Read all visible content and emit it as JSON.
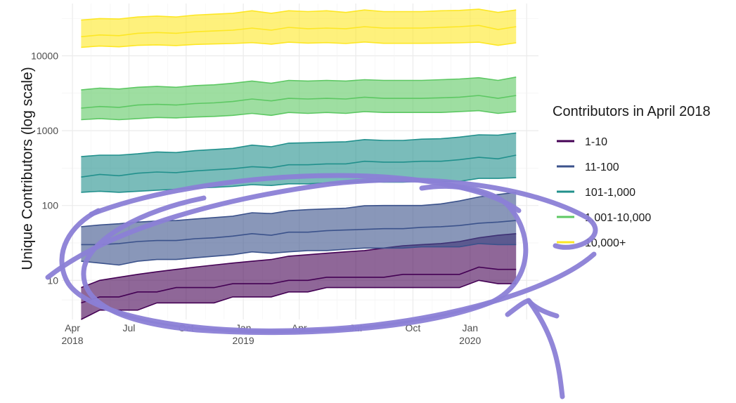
{
  "chart_data": {
    "type": "area",
    "ylabel": "Unique Contributors (log scale)",
    "y_scale": "log",
    "ylim": [
      3,
      50000
    ],
    "y_ticks": [
      {
        "value": 10,
        "label": "10"
      },
      {
        "value": 100,
        "label": "100"
      },
      {
        "value": 1000,
        "label": "1000"
      },
      {
        "value": 10000,
        "label": "10000"
      }
    ],
    "x_range": [
      "2018-03-15",
      "2020-04-20"
    ],
    "x_ticks": [
      {
        "date": "2018-04-01",
        "line1": "Apr",
        "line2": "2018"
      },
      {
        "date": "2018-07-01",
        "line1": "Jul",
        "line2": ""
      },
      {
        "date": "2018-10-01",
        "line1": "Oct",
        "line2": ""
      },
      {
        "date": "2019-01-01",
        "line1": "Jan",
        "line2": "2019"
      },
      {
        "date": "2019-04-01",
        "line1": "Apr",
        "line2": ""
      },
      {
        "date": "2019-07-01",
        "line1": "Jul",
        "line2": ""
      },
      {
        "date": "2019-10-01",
        "line1": "Oct",
        "line2": ""
      },
      {
        "date": "2020-01-01",
        "line1": "Jan",
        "line2": "2020"
      }
    ],
    "grid": true,
    "legend": {
      "title": "Contributors in April 2018",
      "position": "right"
    },
    "x": [
      "2018-04",
      "2018-05",
      "2018-06",
      "2018-07",
      "2018-08",
      "2018-09",
      "2018-10",
      "2018-11",
      "2018-12",
      "2019-01",
      "2019-02",
      "2019-03",
      "2019-04",
      "2019-05",
      "2019-06",
      "2019-07",
      "2019-08",
      "2019-09",
      "2019-10",
      "2019-11",
      "2019-12",
      "2020-01",
      "2020-02",
      "2020-03"
    ],
    "series": [
      {
        "name": "1-10",
        "color": "#440154",
        "lower": [
          3,
          4,
          4,
          4,
          5,
          5,
          5,
          5,
          6,
          6,
          6,
          7,
          7,
          8,
          8,
          8,
          8,
          8,
          8,
          8,
          8,
          10,
          9,
          9
        ],
        "median": [
          5,
          6,
          6,
          7,
          7,
          8,
          8,
          8,
          9,
          9,
          9,
          10,
          10,
          11,
          11,
          11,
          11,
          12,
          12,
          12,
          12,
          15,
          14,
          14
        ],
        "upper": [
          8,
          10,
          11,
          12,
          13,
          14,
          15,
          16,
          17,
          18,
          19,
          21,
          22,
          23,
          24,
          25,
          27,
          29,
          30,
          31,
          33,
          37,
          40,
          42
        ]
      },
      {
        "name": "11-100",
        "color": "#3b528b",
        "lower": [
          18,
          17,
          16,
          18,
          19,
          19,
          20,
          21,
          22,
          24,
          23,
          24,
          25,
          25,
          26,
          27,
          27,
          27,
          28,
          28,
          28,
          31,
          30,
          30
        ],
        "median": [
          30,
          30,
          31,
          33,
          34,
          34,
          36,
          37,
          39,
          42,
          40,
          44,
          44,
          46,
          47,
          48,
          49,
          49,
          51,
          52,
          54,
          58,
          60,
          63
        ],
        "upper": [
          52,
          55,
          57,
          60,
          62,
          63,
          66,
          69,
          72,
          80,
          78,
          85,
          88,
          90,
          92,
          99,
          100,
          100,
          100,
          105,
          115,
          130,
          140,
          150
        ]
      },
      {
        "name": "101-1,000",
        "color": "#21908c",
        "lower": [
          150,
          155,
          150,
          155,
          160,
          165,
          170,
          175,
          180,
          190,
          185,
          195,
          195,
          200,
          200,
          210,
          205,
          205,
          210,
          210,
          210,
          230,
          230,
          235
        ],
        "median": [
          240,
          260,
          250,
          270,
          280,
          275,
          290,
          300,
          310,
          330,
          320,
          350,
          350,
          360,
          360,
          390,
          380,
          380,
          390,
          390,
          410,
          440,
          420,
          470
        ],
        "upper": [
          450,
          470,
          470,
          490,
          520,
          510,
          540,
          560,
          580,
          640,
          610,
          680,
          690,
          700,
          710,
          760,
          740,
          740,
          770,
          780,
          820,
          880,
          870,
          930
        ]
      },
      {
        "name": "1,001-10,000",
        "color": "#5dc863",
        "lower": [
          1400,
          1450,
          1400,
          1450,
          1500,
          1480,
          1520,
          1550,
          1600,
          1700,
          1600,
          1750,
          1700,
          1750,
          1700,
          1800,
          1750,
          1750,
          1750,
          1750,
          1800,
          1850,
          1700,
          1800
        ],
        "median": [
          2000,
          2100,
          2050,
          2200,
          2250,
          2200,
          2300,
          2350,
          2450,
          2650,
          2500,
          2700,
          2650,
          2700,
          2650,
          2800,
          2700,
          2700,
          2700,
          2750,
          2800,
          2950,
          2700,
          2950
        ],
        "upper": [
          3500,
          3700,
          3600,
          3800,
          3900,
          3800,
          4000,
          4100,
          4300,
          4600,
          4300,
          4700,
          4600,
          4700,
          4600,
          4800,
          4700,
          4700,
          4700,
          4800,
          4900,
          5100,
          4700,
          5200
        ]
      },
      {
        "name": "10,000+",
        "color": "#fde725",
        "lower": [
          13000,
          13500,
          13200,
          13800,
          14000,
          13700,
          14200,
          14400,
          14600,
          15000,
          14300,
          15200,
          14800,
          15000,
          14600,
          15300,
          14700,
          14700,
          14700,
          14800,
          14900,
          15200,
          13800,
          14900
        ],
        "median": [
          18000,
          19000,
          18600,
          20000,
          20500,
          20000,
          21000,
          21500,
          22000,
          23500,
          22000,
          24000,
          23000,
          23500,
          23000,
          24500,
          23500,
          23500,
          23500,
          24000,
          24500,
          25500,
          22500,
          24500
        ],
        "upper": [
          30000,
          31500,
          31000,
          33000,
          34000,
          33000,
          35000,
          36000,
          37000,
          40000,
          37000,
          40000,
          39000,
          40000,
          38000,
          41000,
          39000,
          39000,
          39000,
          40000,
          40500,
          42000,
          38000,
          41000
        ]
      }
    ]
  }
}
